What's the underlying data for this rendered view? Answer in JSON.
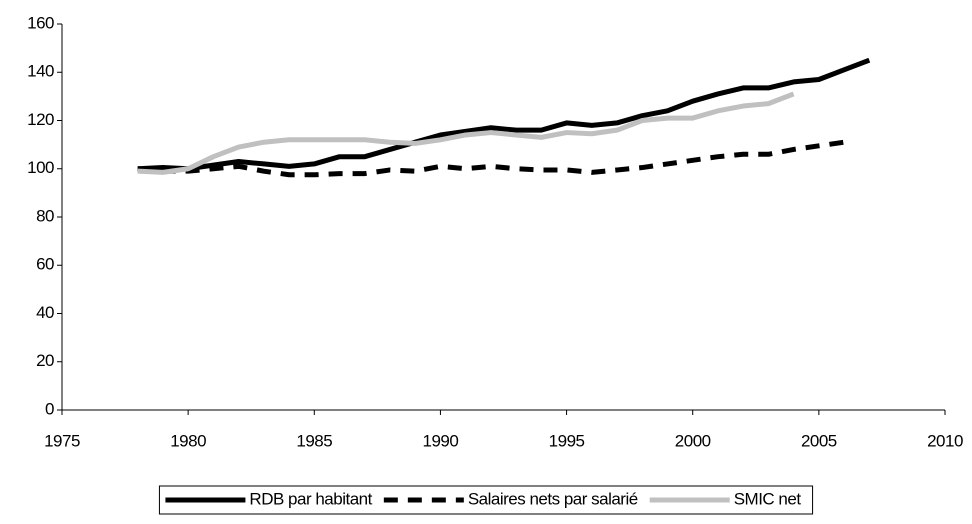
{
  "chart_data": {
    "type": "line",
    "x": [
      1978,
      1979,
      1980,
      1981,
      1982,
      1983,
      1984,
      1985,
      1986,
      1987,
      1988,
      1989,
      1990,
      1991,
      1992,
      1993,
      1994,
      1995,
      1996,
      1997,
      1998,
      1999,
      2000,
      2001,
      2002,
      2003,
      2004,
      2005,
      2006,
      2007
    ],
    "series": [
      {
        "name": "RDB par habitant",
        "color": "#000000",
        "style": "solid",
        "values": [
          100,
          100.5,
          100,
          101.5,
          103,
          102,
          101,
          102,
          105,
          105,
          108,
          111,
          114,
          115.5,
          117,
          116,
          116,
          119,
          118,
          119,
          122,
          124,
          128,
          131,
          133.5,
          133.5,
          136,
          137,
          141,
          145
        ]
      },
      {
        "name": "Salaires nets par salarié",
        "color": "#000000",
        "style": "dashed",
        "values": [
          100,
          99,
          99,
          100,
          101,
          99,
          97.5,
          97.5,
          98,
          98,
          99.5,
          99,
          101,
          100,
          101,
          100,
          99.5,
          99.5,
          98.5,
          99.5,
          100.5,
          102,
          103.5,
          105,
          106,
          106,
          108,
          109.5,
          111,
          null
        ]
      },
      {
        "name": "SMIC net",
        "color": "#c0c0c0",
        "style": "solid",
        "values": [
          99,
          98.5,
          100,
          105,
          109,
          111,
          112,
          112,
          112,
          112,
          111,
          110.5,
          112,
          114,
          115,
          114,
          113,
          115,
          114.5,
          116,
          120,
          121,
          121,
          124,
          126,
          127,
          131,
          null,
          null,
          null
        ]
      }
    ],
    "xlim": [
      1975,
      2010
    ],
    "xticks": [
      1975,
      1980,
      1985,
      1990,
      1995,
      2000,
      2005,
      2010
    ],
    "ylim": [
      0,
      160
    ],
    "yticks": [
      0,
      20,
      40,
      60,
      80,
      100,
      120,
      140,
      160
    ],
    "grid": false,
    "legend": "bottom"
  }
}
